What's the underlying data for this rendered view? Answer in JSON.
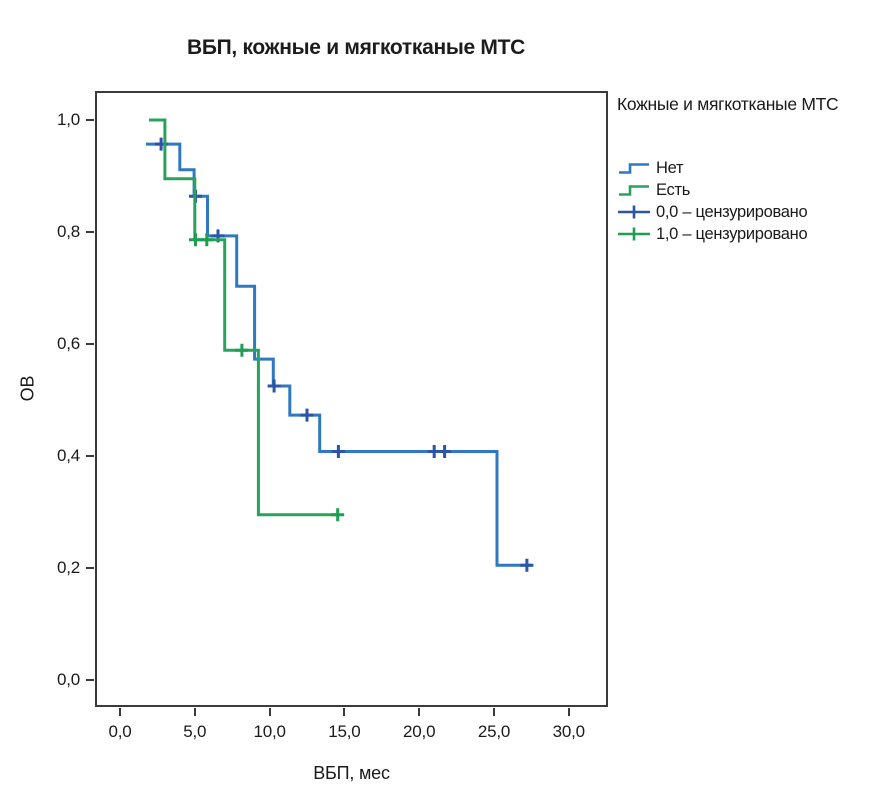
{
  "chart_data": {
    "type": "line",
    "subtype": "kaplan-meier-step",
    "title": "ВБП, кожные и мягкотканые МТС",
    "xlabel": "ВБП, мес",
    "ylabel": "ОВ",
    "xlim": [
      0,
      30
    ],
    "ylim": [
      0.0,
      1.0
    ],
    "grid": false,
    "x_tick_values": [
      0,
      5,
      10,
      15,
      20,
      25,
      30
    ],
    "x_tick_labels": [
      "0,0",
      "5,0",
      "10,0",
      "15,0",
      "20,0",
      "25,0",
      "30,0"
    ],
    "y_tick_values": [
      0,
      0.2,
      0.4,
      0.6,
      0.8,
      1.0
    ],
    "y_tick_labels": [
      "0,0",
      "0,2",
      "0,4",
      "0,6",
      "0,8",
      "1,0"
    ],
    "legend": {
      "position": "right-top-outside",
      "title": "Кожные и мягкотканые МТС",
      "items": [
        {
          "label": "Нет",
          "swatch": "step",
          "color": "#2f79c1"
        },
        {
          "label": "Есть",
          "swatch": "step",
          "color": "#29a25c"
        },
        {
          "label": "0,0 – цензурировано",
          "swatch": "censor",
          "color": "#2a55a8"
        },
        {
          "label": "1,0 – цензурировано",
          "swatch": "censor",
          "color": "#1f9d52"
        }
      ]
    },
    "series": [
      {
        "id": "net",
        "name": "Нет",
        "color": "#2f79c1",
        "censor_color": "#2a55a8",
        "steps": [
          [
            1.74,
            0.957
          ],
          [
            4.0,
            0.957
          ],
          [
            4.0,
            0.911
          ],
          [
            4.95,
            0.911
          ],
          [
            4.95,
            0.864
          ],
          [
            5.85,
            0.864
          ],
          [
            5.85,
            0.793
          ],
          [
            7.8,
            0.793
          ],
          [
            7.8,
            0.703
          ],
          [
            9.0,
            0.703
          ],
          [
            9.0,
            0.573
          ],
          [
            10.25,
            0.573
          ],
          [
            10.25,
            0.525
          ],
          [
            11.35,
            0.525
          ],
          [
            11.35,
            0.473
          ],
          [
            13.35,
            0.473
          ],
          [
            13.35,
            0.408
          ],
          [
            25.2,
            0.408
          ],
          [
            25.2,
            0.205
          ],
          [
            27.5,
            0.205
          ]
        ],
        "censored_points": [
          [
            2.75,
            0.957
          ],
          [
            5.05,
            0.864
          ],
          [
            6.55,
            0.793
          ],
          [
            10.3,
            0.525
          ],
          [
            12.5,
            0.473
          ],
          [
            14.6,
            0.408
          ],
          [
            21.0,
            0.408
          ],
          [
            21.7,
            0.408
          ],
          [
            27.2,
            0.205
          ]
        ]
      },
      {
        "id": "est",
        "name": "Есть",
        "color": "#29a25c",
        "censor_color": "#1f9d52",
        "steps": [
          [
            1.94,
            1.0
          ],
          [
            3.0,
            1.0
          ],
          [
            3.0,
            0.895
          ],
          [
            5.0,
            0.895
          ],
          [
            5.0,
            0.786
          ],
          [
            7.0,
            0.786
          ],
          [
            7.0,
            0.589
          ],
          [
            9.25,
            0.589
          ],
          [
            9.25,
            0.295
          ],
          [
            14.6,
            0.295
          ]
        ],
        "censored_points": [
          [
            5.05,
            0.786
          ],
          [
            5.8,
            0.786
          ],
          [
            8.15,
            0.589
          ],
          [
            14.55,
            0.295
          ]
        ]
      }
    ]
  }
}
